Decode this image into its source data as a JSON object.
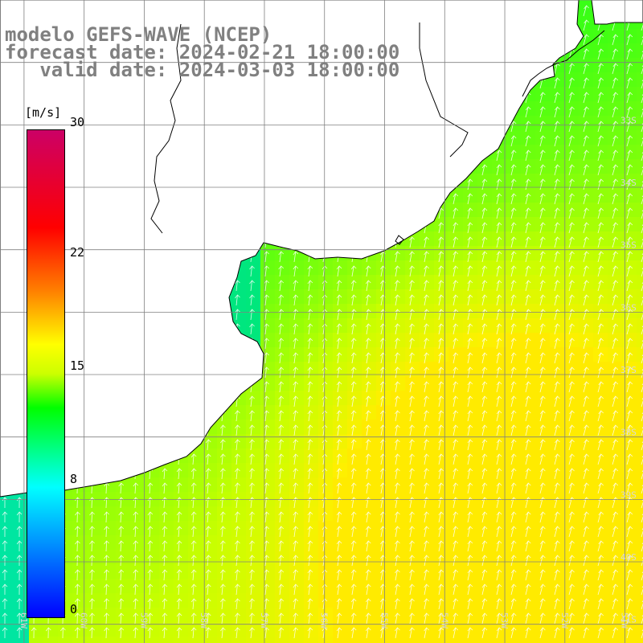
{
  "title": {
    "line1": "modelo GEFS-WAVE (NCEP)",
    "line2": "forecast date: 2024-02-21 18:00:00",
    "line3": "   valid date: 2024-03-03 18:00:00"
  },
  "colorbar": {
    "unit": "[m/s]",
    "ticks": [
      {
        "label": "30",
        "value": 30
      },
      {
        "label": "22",
        "value": 22
      },
      {
        "label": "15",
        "value": 15
      },
      {
        "label": "8",
        "value": 8
      },
      {
        "label": "0",
        "value": 0
      }
    ],
    "min": 0,
    "max": 30
  },
  "map": {
    "lon_range": [
      -61.4,
      -50.7
    ],
    "lat_range": [
      -41.3,
      -31.0
    ],
    "lon_labels": [
      "61W",
      "60W",
      "59W",
      "58W",
      "57W",
      "56W",
      "55W",
      "54W",
      "53W",
      "52W",
      "51W"
    ],
    "lat_labels": [
      "33S",
      "34S",
      "35S",
      "36S",
      "37S",
      "38S",
      "39S",
      "40S",
      "41S"
    ],
    "wind_direction": "toward north-northeast",
    "colors": {
      "land": "#ffffff",
      "coast": "#000000",
      "grid": "#808080",
      "arrows": "#ffffff",
      "title": "#808080"
    }
  }
}
